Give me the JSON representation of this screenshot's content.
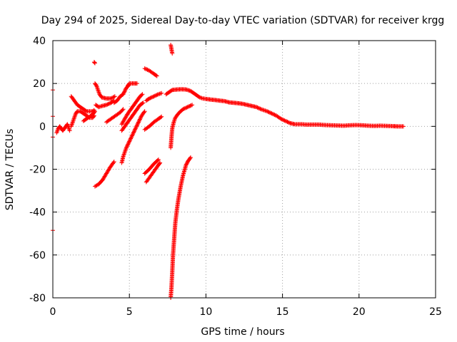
{
  "chart_data": {
    "type": "scatter",
    "title": "Day 294 of 2025, Sidereal Day-to-day VTEC variation (SDTVAR) for receiver krgg",
    "xlabel": "GPS time / hours",
    "ylabel": "SDTVAR / TECUs",
    "xlim": [
      0,
      25
    ],
    "ylim": [
      -80,
      40
    ],
    "xticks": [
      0,
      5,
      10,
      15,
      20,
      25
    ],
    "yticks": [
      -80,
      -60,
      -40,
      -20,
      0,
      20,
      40
    ],
    "xtick_labels": [
      "0",
      "5",
      "10",
      "15",
      "20",
      "25"
    ],
    "ytick_labels": [
      "-80",
      "-60",
      "-40",
      "-20",
      "0",
      "20",
      "40"
    ],
    "grid": true,
    "marker": "+",
    "color": "#ff0000",
    "series": [
      {
        "name": "edge-points",
        "points": [
          [
            0,
            17
          ],
          [
            0,
            4.7
          ],
          [
            0,
            -5
          ],
          [
            0,
            -48.5
          ]
        ]
      },
      {
        "name": "s1",
        "points": [
          [
            0.25,
            -3
          ],
          [
            0.35,
            -1
          ],
          [
            0.45,
            0
          ],
          [
            0.55,
            -1
          ],
          [
            0.65,
            -2
          ],
          [
            0.75,
            -1
          ],
          [
            0.85,
            0
          ],
          [
            0.95,
            1
          ],
          [
            1.05,
            -1
          ],
          [
            1.1,
            -2
          ]
        ]
      },
      {
        "name": "s2",
        "points": [
          [
            1.2,
            0
          ],
          [
            1.3,
            2
          ],
          [
            1.4,
            4
          ],
          [
            1.5,
            6
          ],
          [
            1.6,
            7
          ],
          [
            1.8,
            7
          ],
          [
            2.0,
            6
          ],
          [
            2.2,
            5
          ],
          [
            2.4,
            4
          ],
          [
            2.6,
            4
          ],
          [
            2.7,
            5
          ]
        ]
      },
      {
        "name": "s3",
        "points": [
          [
            1.2,
            14
          ],
          [
            1.4,
            12
          ],
          [
            1.6,
            10
          ],
          [
            1.8,
            9
          ],
          [
            2.0,
            8
          ],
          [
            2.2,
            7
          ],
          [
            2.4,
            7
          ],
          [
            2.6,
            7
          ],
          [
            2.7,
            7.5
          ]
        ]
      },
      {
        "name": "s4",
        "points": [
          [
            2.0,
            2.5
          ],
          [
            2.2,
            3.5
          ],
          [
            2.4,
            4.5
          ],
          [
            2.6,
            5.5
          ],
          [
            2.75,
            7
          ]
        ]
      },
      {
        "name": "s5",
        "points": [
          [
            2.7,
            30
          ],
          [
            2.75,
            29.5
          ]
        ]
      },
      {
        "name": "s6",
        "points": [
          [
            2.75,
            20
          ],
          [
            2.85,
            19
          ],
          [
            2.95,
            17
          ],
          [
            3.05,
            15
          ],
          [
            3.2,
            13.5
          ],
          [
            3.5,
            13
          ],
          [
            3.8,
            13
          ],
          [
            4.05,
            14
          ]
        ]
      },
      {
        "name": "s7",
        "points": [
          [
            2.8,
            10
          ],
          [
            3.0,
            9
          ],
          [
            3.2,
            9.5
          ],
          [
            3.5,
            10
          ],
          [
            3.8,
            11
          ],
          [
            4.0,
            12
          ]
        ]
      },
      {
        "name": "s8",
        "points": [
          [
            2.75,
            -28
          ],
          [
            3.0,
            -27
          ],
          [
            3.25,
            -25
          ],
          [
            3.5,
            -22
          ],
          [
            3.75,
            -19
          ],
          [
            4.0,
            -16.5
          ]
        ]
      },
      {
        "name": "s9",
        "points": [
          [
            3.5,
            2
          ],
          [
            3.8,
            3.5
          ],
          [
            4.1,
            5
          ],
          [
            4.4,
            6.5
          ],
          [
            4.6,
            8
          ]
        ]
      },
      {
        "name": "s10",
        "points": [
          [
            4.0,
            11
          ],
          [
            4.2,
            12
          ],
          [
            4.4,
            14
          ],
          [
            4.6,
            15
          ],
          [
            4.8,
            18
          ],
          [
            4.95,
            19
          ]
        ]
      },
      {
        "name": "s11",
        "points": [
          [
            4.5,
            -17
          ],
          [
            4.6,
            -14
          ],
          [
            4.8,
            -10
          ],
          [
            5.0,
            -7
          ],
          [
            5.2,
            -4
          ],
          [
            5.4,
            -1
          ],
          [
            5.6,
            2
          ],
          [
            5.8,
            5
          ],
          [
            6.0,
            7
          ]
        ]
      },
      {
        "name": "s12",
        "points": [
          [
            4.5,
            -2
          ],
          [
            4.7,
            0
          ],
          [
            4.9,
            2
          ],
          [
            5.1,
            4
          ],
          [
            5.3,
            6
          ],
          [
            5.5,
            8
          ],
          [
            5.7,
            10
          ],
          [
            5.9,
            11
          ]
        ]
      },
      {
        "name": "s13",
        "points": [
          [
            4.5,
            1
          ],
          [
            4.7,
            3.5
          ],
          [
            4.9,
            6
          ],
          [
            5.1,
            8
          ],
          [
            5.3,
            10
          ],
          [
            5.5,
            12
          ],
          [
            5.7,
            14
          ],
          [
            5.85,
            15
          ]
        ]
      },
      {
        "name": "s14",
        "points": [
          [
            4.9,
            19
          ],
          [
            5.0,
            20
          ],
          [
            5.2,
            20
          ],
          [
            5.5,
            20
          ]
        ]
      },
      {
        "name": "s15",
        "points": [
          [
            6.0,
            -22
          ],
          [
            6.3,
            -20
          ],
          [
            6.6,
            -17.5
          ],
          [
            6.9,
            -15.5
          ]
        ]
      },
      {
        "name": "s16",
        "points": [
          [
            6.0,
            -1.5
          ],
          [
            6.3,
            0
          ],
          [
            6.6,
            2
          ],
          [
            6.9,
            3.5
          ],
          [
            7.1,
            4.5
          ]
        ]
      },
      {
        "name": "s17",
        "points": [
          [
            6.1,
            -26
          ],
          [
            6.4,
            -23
          ],
          [
            6.7,
            -20
          ],
          [
            6.9,
            -18
          ],
          [
            7.0,
            -17
          ]
        ]
      },
      {
        "name": "s18",
        "points": [
          [
            6.0,
            27
          ],
          [
            6.3,
            26
          ],
          [
            6.6,
            24.5
          ],
          [
            6.8,
            23.5
          ]
        ]
      },
      {
        "name": "s19",
        "points": [
          [
            6.1,
            12
          ],
          [
            6.3,
            13
          ],
          [
            6.6,
            14
          ],
          [
            6.9,
            15
          ],
          [
            7.1,
            15.5
          ]
        ]
      },
      {
        "name": "s20",
        "points": [
          [
            7.7,
            -10
          ],
          [
            7.75,
            -5
          ],
          [
            7.8,
            -1
          ],
          [
            7.9,
            2
          ],
          [
            8.0,
            4
          ],
          [
            8.2,
            6
          ],
          [
            8.5,
            8
          ],
          [
            8.8,
            9
          ],
          [
            9.1,
            10
          ]
        ]
      },
      {
        "name": "s21",
        "points": [
          [
            7.7,
            -80
          ],
          [
            7.75,
            -75
          ],
          [
            7.8,
            -68
          ],
          [
            7.85,
            -60
          ],
          [
            7.9,
            -55
          ],
          [
            7.95,
            -50
          ],
          [
            8.0,
            -45
          ],
          [
            8.1,
            -39
          ],
          [
            8.2,
            -34
          ],
          [
            8.35,
            -28
          ],
          [
            8.5,
            -23
          ],
          [
            8.7,
            -18
          ],
          [
            8.85,
            -16
          ],
          [
            9.0,
            -14.5
          ]
        ]
      },
      {
        "name": "s22",
        "points": [
          [
            7.7,
            38
          ],
          [
            7.75,
            36
          ],
          [
            7.8,
            34
          ]
        ]
      },
      {
        "name": "s23",
        "points": [
          [
            7.4,
            15
          ],
          [
            7.6,
            16
          ],
          [
            7.8,
            17
          ],
          [
            8.1,
            17.2
          ],
          [
            8.4,
            17.3
          ],
          [
            8.7,
            17.2
          ],
          [
            9.0,
            16.5
          ],
          [
            9.2,
            15.5
          ],
          [
            9.4,
            14.5
          ],
          [
            9.6,
            13.5
          ],
          [
            9.8,
            13
          ],
          [
            10.0,
            12.8
          ],
          [
            10.3,
            12.5
          ],
          [
            10.6,
            12.3
          ],
          [
            10.9,
            12
          ],
          [
            11.2,
            11.8
          ],
          [
            11.5,
            11.2
          ],
          [
            11.8,
            11
          ],
          [
            12.1,
            10.8
          ],
          [
            12.4,
            10.5
          ],
          [
            12.7,
            10
          ],
          [
            13.0,
            9.5
          ],
          [
            13.3,
            9
          ],
          [
            13.6,
            8
          ],
          [
            14.0,
            7
          ],
          [
            14.3,
            6
          ],
          [
            14.6,
            5
          ],
          [
            14.9,
            3.5
          ],
          [
            15.2,
            2.5
          ],
          [
            15.5,
            1.5
          ],
          [
            15.8,
            1
          ],
          [
            16.2,
            1
          ],
          [
            16.6,
            0.8
          ],
          [
            17.0,
            0.8
          ],
          [
            17.4,
            0.8
          ],
          [
            17.8,
            0.6
          ],
          [
            18.2,
            0.5
          ],
          [
            18.6,
            0.4
          ],
          [
            19.0,
            0.3
          ],
          [
            19.4,
            0.5
          ],
          [
            19.8,
            0.6
          ],
          [
            20.2,
            0.5
          ],
          [
            20.6,
            0.3
          ],
          [
            21.0,
            0.2
          ],
          [
            21.4,
            0.3
          ],
          [
            21.8,
            0.2
          ],
          [
            22.2,
            0.1
          ],
          [
            22.5,
            0
          ],
          [
            22.9,
            0
          ]
        ]
      }
    ]
  }
}
